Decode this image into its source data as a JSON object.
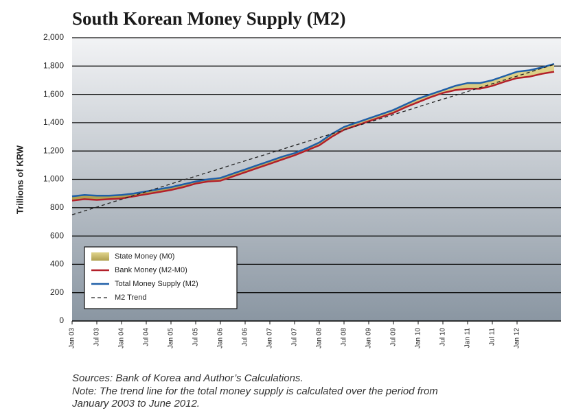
{
  "chart_data": {
    "type": "line",
    "title": "South Korean Money Supply (M2)",
    "ylabel": "Trillions of KRW",
    "categories": [
      "Jan 03",
      null,
      "Jul 03",
      null,
      "Jan 04",
      null,
      "Jul 04",
      null,
      "Jan 05",
      null,
      "Jul 05",
      null,
      "Jan 06",
      null,
      "Jul 06",
      null,
      "Jan 07",
      null,
      "Jul 07",
      null,
      "Jan 08",
      null,
      "Jul 08",
      null,
      "Jan 09",
      null,
      "Jul 09",
      null,
      "Jan 10",
      null,
      "Jul 10",
      null,
      "Jan 11",
      null,
      "Jul 11",
      null,
      "Jan 12",
      null,
      null,
      null
    ],
    "series": [
      {
        "name": "State Money (M0)",
        "color": "#c8b866",
        "stack": true,
        "values": [
          30,
          30,
          30,
          25,
          25,
          20,
          20,
          20,
          20,
          20,
          15,
          15,
          20,
          20,
          20,
          20,
          20,
          20,
          15,
          15,
          20,
          20,
          20,
          20,
          20,
          20,
          20,
          20,
          25,
          20,
          20,
          30,
          40,
          40,
          40,
          40,
          45,
          45,
          45,
          55
        ]
      },
      {
        "name": "Bank Money (M2-M0)",
        "color": "#b3202a",
        "values": [
          850,
          860,
          855,
          860,
          865,
          880,
          895,
          910,
          925,
          945,
          970,
          985,
          990,
          1020,
          1050,
          1080,
          1110,
          1140,
          1170,
          1205,
          1240,
          1300,
          1350,
          1380,
          1410,
          1440,
          1470,
          1510,
          1545,
          1580,
          1610,
          1630,
          1640,
          1640,
          1660,
          1690,
          1715,
          1725,
          1745,
          1760
        ]
      },
      {
        "name": "Total Money Supply (M2)",
        "color": "#1f5fa8",
        "values": [
          880,
          890,
          885,
          885,
          890,
          900,
          915,
          930,
          945,
          965,
          985,
          1000,
          1010,
          1040,
          1070,
          1100,
          1130,
          1160,
          1185,
          1220,
          1260,
          1320,
          1370,
          1400,
          1430,
          1460,
          1490,
          1530,
          1570,
          1600,
          1630,
          1660,
          1680,
          1680,
          1700,
          1730,
          1760,
          1770,
          1790,
          1815
        ]
      },
      {
        "name": "M2 Trend",
        "color": "#222222",
        "dashed": true,
        "values": [
          750,
          777,
          804,
          832,
          859,
          886,
          913,
          940,
          968,
          995,
          1022,
          1049,
          1076,
          1104,
          1131,
          1158,
          1185,
          1212,
          1240,
          1267,
          1294,
          1321,
          1348,
          1376,
          1403,
          1430,
          1457,
          1484,
          1512,
          1539,
          1566,
          1593,
          1620,
          1648,
          1675,
          1702,
          1729,
          1756,
          1784,
          1811
        ]
      }
    ],
    "ylim": [
      0,
      2000
    ],
    "yticks": [
      0,
      200,
      400,
      600,
      800,
      {
        "value": 1000,
        "label": "1,000"
      },
      {
        "value": 1200,
        "label": "1,200"
      },
      {
        "value": 1400,
        "label": "1,400"
      },
      {
        "value": 1600,
        "label": "1,600"
      },
      {
        "value": 1800,
        "label": "1,800"
      },
      {
        "value": 2000,
        "label": "2,000"
      }
    ],
    "grid": true,
    "legend": "lower left",
    "notes": [
      "Sources: Bank of Korea and Author’s Calculations.",
      "Note: The trend line for the total money supply is calculated over the period from",
      "January 2003 to June 2012."
    ]
  }
}
